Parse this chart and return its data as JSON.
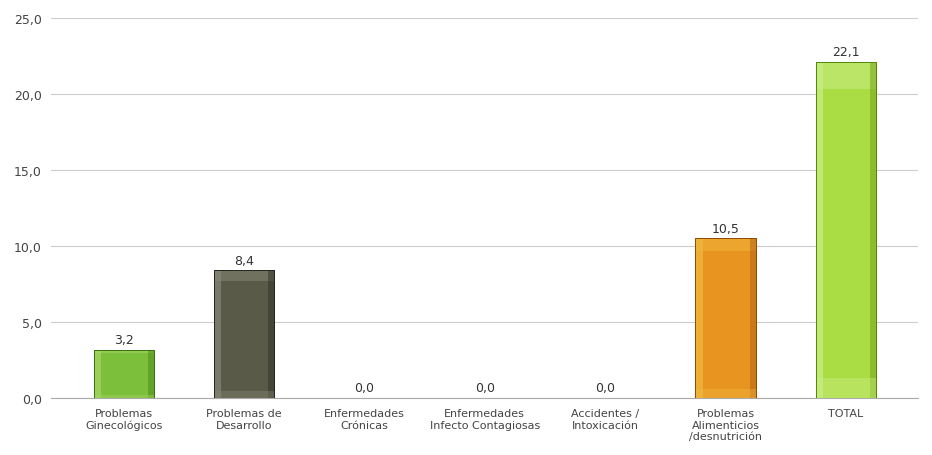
{
  "categories": [
    "Problemas\nGinecológicos",
    "Problemas de\nDesarrollo",
    "Enfermedades\nCrónicas",
    "Enfermedades\nInfecto Contagiosas",
    "Accidentes /\nIntoxicación",
    "Problemas\nAlimenticios\n/desnutrición",
    "TOTAL"
  ],
  "values": [
    3.2,
    8.4,
    0.0,
    0.0,
    0.0,
    10.5,
    22.1
  ],
  "bar_colors_main": [
    "#7BBF3A",
    "#5A5A48",
    "#8A8A78",
    "#8A8A78",
    "#8A8A78",
    "#E89420",
    "#AADD44"
  ],
  "bar_colors_light": [
    "#A8D868",
    "#888878",
    "#AAAAAA",
    "#AAAAAA",
    "#AAAAAA",
    "#F0B840",
    "#CCEE88"
  ],
  "bar_colors_dark": [
    "#4A8A18",
    "#303028",
    "#666658",
    "#666658",
    "#666658",
    "#B06010",
    "#70A010"
  ],
  "bar_colors_edge": [
    "#3A7010",
    "#252520",
    "#555545",
    "#555545",
    "#555545",
    "#904A00",
    "#508808"
  ],
  "value_labels": [
    "3,2",
    "8,4",
    "0,0",
    "0,0",
    "0,0",
    "10,5",
    "22,1"
  ],
  "ylim": [
    0,
    25
  ],
  "yticks": [
    0.0,
    5.0,
    10.0,
    15.0,
    20.0,
    25.0
  ],
  "ytick_labels": [
    "0,0",
    "5,0",
    "10,0",
    "15,0",
    "20,0",
    "25,0"
  ],
  "background_color": "#FFFFFF",
  "grid_color": "#CCCCCC",
  "label_fontsize": 8.0,
  "value_fontsize": 9,
  "tick_fontsize": 9,
  "bar_width": 0.5
}
